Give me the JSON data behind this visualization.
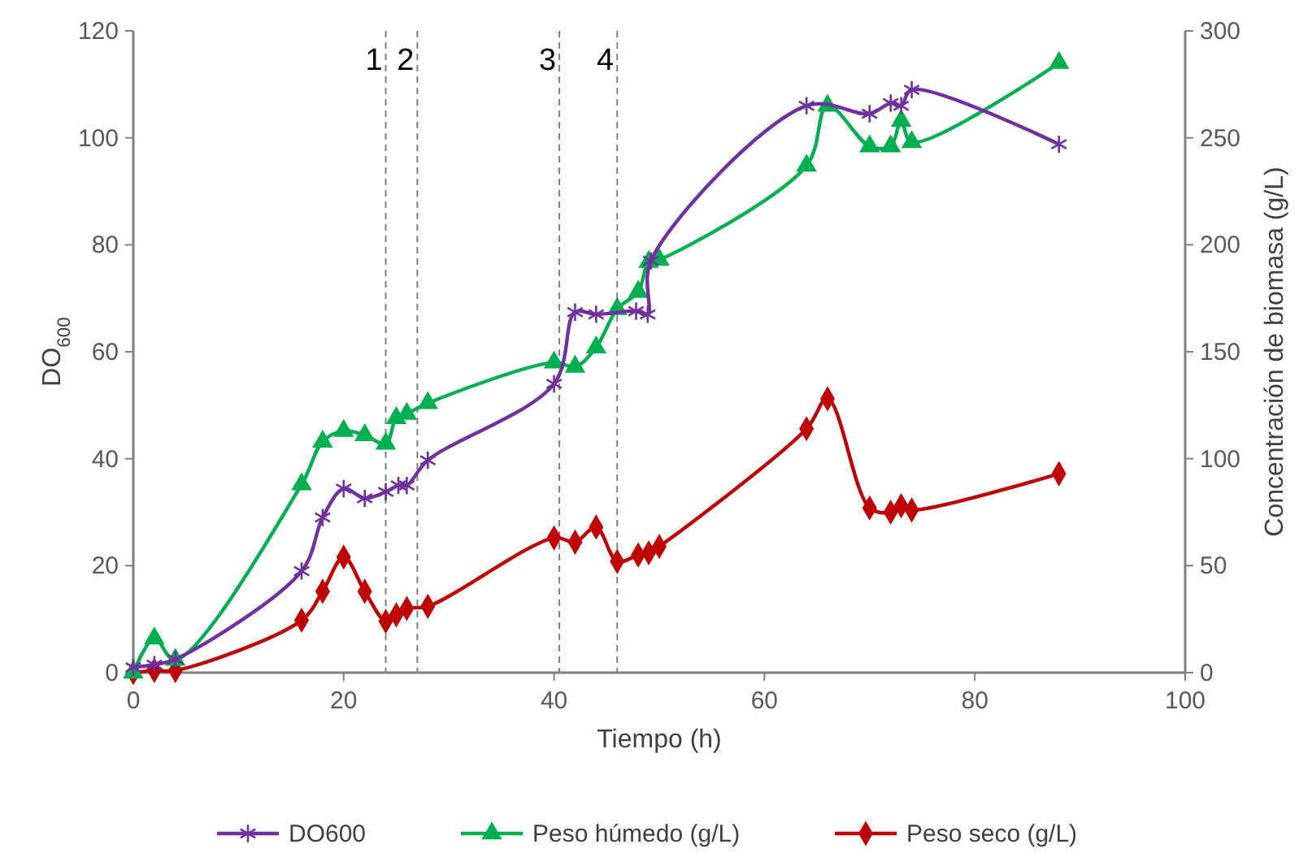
{
  "chart_data": {
    "type": "line",
    "xlabel": "Tiempo (h)",
    "ylabel": "DO$_{600}$",
    "y2label": "Concentración de biomasa (g/L)",
    "xlim": [
      0,
      100
    ],
    "xticks": [
      0,
      20,
      40,
      60,
      80,
      100
    ],
    "ylim": [
      0,
      120
    ],
    "yticks": [
      0,
      20,
      40,
      60,
      80,
      100,
      120
    ],
    "y2lim": [
      0,
      300
    ],
    "y2ticks": [
      0,
      50,
      100,
      150,
      200,
      250,
      300
    ],
    "grid": false,
    "legend": "bottom",
    "line_style": "solid",
    "series": [
      {
        "name": "DO600",
        "color": "#7030a0",
        "marker": "cross",
        "x": [
          0,
          2,
          4,
          16,
          18,
          20,
          22,
          24,
          25.2,
          26,
          28,
          40,
          42,
          44,
          47.8,
          48.9,
          49.2,
          64,
          70,
          72,
          73,
          74,
          88
        ],
        "values": [
          1,
          1.5,
          2.5,
          19,
          29,
          34.4,
          32.6,
          33.8,
          35,
          35,
          39.7,
          54,
          67.4,
          67,
          67.6,
          67,
          77,
          106,
          104.5,
          106.5,
          106,
          109,
          98.8
        ]
      },
      {
        "name": "Peso húmedo (g/L)",
        "color": "#00b050",
        "marker": "triangle",
        "axis": "y2",
        "x": [
          0,
          2,
          4,
          16,
          18,
          20,
          22,
          24,
          25,
          26,
          28,
          40,
          42,
          44,
          46,
          48,
          49,
          50,
          64,
          66,
          70,
          72,
          73,
          74,
          88
        ],
        "values": [
          0,
          16,
          6,
          88,
          108,
          113,
          111,
          107,
          119,
          121,
          126,
          145,
          143,
          152,
          170,
          178,
          192,
          193,
          237,
          265,
          246,
          246,
          258,
          248,
          285
        ]
      },
      {
        "name": "Peso seco (g/L)",
        "color": "#c00000",
        "marker": "diamond",
        "axis": "y2",
        "x": [
          0,
          2,
          4,
          16,
          18,
          20,
          22,
          24,
          25,
          26,
          28,
          40,
          42,
          44,
          46,
          48,
          49,
          50,
          64,
          66,
          70,
          72,
          73,
          74,
          88
        ],
        "values": [
          0,
          1,
          1,
          24.5,
          38,
          54,
          38,
          24,
          27,
          30,
          31,
          63,
          61,
          68,
          52,
          55,
          56,
          59,
          114,
          128,
          77,
          75,
          78,
          76,
          93
        ]
      }
    ],
    "ref_lines": [
      {
        "axis": "x",
        "value": 24,
        "color": "#808080",
        "line_style": "dashed"
      },
      {
        "axis": "x",
        "value": 27,
        "color": "#808080",
        "line_style": "dashed"
      },
      {
        "axis": "x",
        "value": 40.5,
        "color": "#808080",
        "line_style": "dashed"
      },
      {
        "axis": "x",
        "value": 46,
        "color": "#808080",
        "line_style": "dashed"
      }
    ],
    "annotations": [
      {
        "text": "1",
        "x": 24
      },
      {
        "text": "2",
        "x": 27
      },
      {
        "text": "3",
        "x": 40.5
      },
      {
        "text": "4",
        "x": 46
      }
    ]
  }
}
